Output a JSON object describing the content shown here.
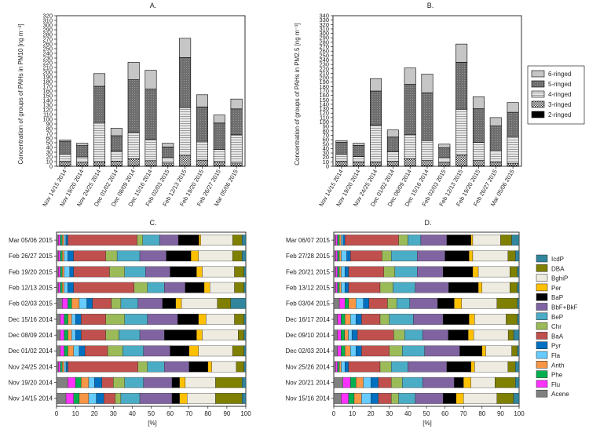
{
  "colors": {
    "ring": [
      "#000000",
      "#ffffff",
      "#d9d9d9",
      "#707070",
      "#c6c6c6"
    ],
    "pah": {
      "Acene": "#808080",
      "Flu": "#ff33ff",
      "Phe": "#00b050",
      "Anth": "#f79646",
      "Fla": "#66ccff",
      "Pyr": "#0070c0",
      "BaA": "#c0504d",
      "Chr": "#9bbb59",
      "BeP": "#4bacc6",
      "BbF+BkF": "#8064a2",
      "BaP": "#000000",
      "Per": "#ffc000",
      "BghiP": "#eeece1",
      "DBA": "#7f7f00",
      "IcdP": "#31859c"
    }
  },
  "chart_data": [
    {
      "type": "bar",
      "stacked": true,
      "panel_label": "A.",
      "ylabel": "Concentration of groups of PAHs in PM10 [ng m⁻³]",
      "ylim": [
        0,
        320
      ],
      "yticks": [
        0,
        10,
        20,
        30,
        40,
        50,
        60,
        70,
        80,
        90,
        100,
        110,
        120,
        130,
        140,
        150,
        160,
        170,
        180,
        190,
        200,
        210,
        220,
        230,
        240,
        250,
        260,
        270,
        280,
        290,
        300,
        310,
        320
      ],
      "categories": [
        "Nov 14/15 2014",
        "Nov 19/20 2014",
        "Nov 24/25 2014",
        "Dec 01/02 2014",
        "Dec 08/09 2014",
        "Dec 15/16 2014",
        "Feb 02/03 2015",
        "Feb 12/13 2015",
        "Feb 19/20 2015",
        "Feb 26/27 2015",
        "Mar 05/06 2015"
      ],
      "series": [
        {
          "name": "2-ringed",
          "values": [
            1,
            1,
            1,
            1,
            1,
            1,
            1,
            1,
            1,
            1,
            1
          ]
        },
        {
          "name": "3-ringed",
          "values": [
            9,
            7,
            8,
            10,
            15,
            11,
            6,
            22,
            12,
            8,
            6
          ]
        },
        {
          "name": "4-ringed",
          "values": [
            16,
            12,
            84,
            21,
            56,
            45,
            12,
            102,
            40,
            27,
            60
          ]
        },
        {
          "name": "5-ringed",
          "values": [
            27,
            24,
            77,
            33,
            112,
            107,
            22,
            106,
            73,
            56,
            55
          ]
        },
        {
          "name": "6-ringed",
          "values": [
            3,
            5,
            27,
            16,
            37,
            40,
            8,
            41,
            26,
            17,
            21
          ]
        }
      ]
    },
    {
      "type": "bar",
      "stacked": true,
      "panel_label": "B.",
      "ylabel": "Concentration of groups of PAHs in PM2.5 [ng m⁻³]",
      "ylim": [
        0,
        340
      ],
      "yticks": [
        0,
        10,
        20,
        30,
        40,
        50,
        60,
        70,
        80,
        90,
        100,
        110,
        120,
        130,
        140,
        150,
        160,
        170,
        180,
        190,
        200,
        210,
        220,
        230,
        240,
        250,
        260,
        270,
        280,
        290,
        300,
        310,
        320,
        330,
        340
      ],
      "categories": [
        "Nov 14/15 2014",
        "Nov 19/20 2014",
        "Nov 24/25 2014",
        "Dec 01/02 2014",
        "Dec 08/09 2014",
        "Dec 15/16 2014",
        "Feb 02/03 2015",
        "Feb 12/13 2015",
        "Feb 19/20 2015",
        "Feb 26/27 2015",
        "Mar 05/06 2015"
      ],
      "series": [
        {
          "name": "2-ringed",
          "values": [
            1,
            1,
            1,
            1,
            1,
            1,
            1,
            1,
            1,
            1,
            1
          ]
        },
        {
          "name": "3-ringed",
          "values": [
            10,
            8,
            8,
            10,
            16,
            12,
            7,
            24,
            12,
            8,
            6
          ]
        },
        {
          "name": "4-ringed",
          "values": [
            16,
            13,
            84,
            22,
            55,
            45,
            12,
            104,
            41,
            27,
            60
          ]
        },
        {
          "name": "5-ringed",
          "values": [
            27,
            25,
            77,
            33,
            113,
            108,
            22,
            106,
            76,
            55,
            55
          ]
        },
        {
          "name": "6-ringed",
          "values": [
            4,
            5,
            28,
            16,
            37,
            42,
            8,
            41,
            27,
            19,
            22
          ]
        }
      ],
      "legend": {
        "placement": "right",
        "order": [
          "6-ringed",
          "5-ringed",
          "4-ringed",
          "3-ringed",
          "2-ringed"
        ]
      }
    },
    {
      "type": "bar",
      "stacked": true,
      "orientation": "horizontal",
      "panel_label": "C.",
      "xlabel": "[%]",
      "xlim": [
        0,
        100
      ],
      "xticks": [
        0,
        10,
        20,
        30,
        40,
        50,
        60,
        70,
        80,
        90,
        100
      ],
      "components": [
        "Acene",
        "Flu",
        "Phe",
        "Anth",
        "Fla",
        "Pyr",
        "BaA",
        "Chr",
        "BeP",
        "BbF+BkF",
        "BaP",
        "Per",
        "BghiP",
        "DBA",
        "IcdP"
      ],
      "categories": [
        "Mar 05/06 2015",
        "Feb 26/27 2015",
        "Feb 19/20 2015",
        "Feb 12/13 2015",
        "Feb 02/03 2015",
        "Dec 15/16 2014",
        "Dec 08/09 2014",
        "Dec 01/02 2014",
        "Nov 24/25 2014",
        "Nov 19/20 2014",
        "Nov 14/15 2014"
      ],
      "rows": [
        [
          1,
          1,
          1,
          1,
          1,
          1,
          37,
          3,
          9,
          10,
          11,
          1,
          17,
          5,
          2
        ],
        [
          1,
          1,
          1,
          1,
          2,
          3,
          17,
          6,
          12,
          14,
          13,
          4,
          18,
          5,
          2
        ],
        [
          1,
          1,
          1,
          1,
          3,
          2,
          19,
          8,
          11,
          13,
          14,
          3,
          17,
          5,
          1
        ],
        [
          1,
          1,
          1,
          1,
          2,
          3,
          32,
          7,
          9,
          11,
          10,
          3,
          13,
          5,
          1
        ],
        [
          3,
          3,
          2,
          4,
          4,
          3,
          10,
          5,
          9,
          13,
          7,
          3,
          19,
          7,
          8
        ],
        [
          2,
          2,
          2,
          2,
          2,
          3,
          13,
          10,
          12,
          16,
          11,
          4,
          15,
          5,
          1
        ],
        [
          2,
          2,
          2,
          2,
          2,
          3,
          13,
          7,
          11,
          13,
          17,
          3,
          19,
          3,
          1
        ],
        [
          2,
          2,
          2,
          3,
          3,
          3,
          12,
          8,
          11,
          14,
          10,
          5,
          18,
          6,
          1
        ],
        [
          1,
          1,
          1,
          1,
          1,
          1,
          37,
          5,
          9,
          13,
          10,
          2,
          13,
          4,
          1
        ],
        [
          6,
          4,
          3,
          4,
          3,
          4,
          6,
          6,
          10,
          15,
          4,
          3,
          16,
          14,
          2
        ],
        [
          5,
          4,
          3,
          5,
          4,
          4,
          6,
          3,
          10,
          17,
          4,
          4,
          15,
          14,
          2
        ]
      ]
    },
    {
      "type": "bar",
      "stacked": true,
      "orientation": "horizontal",
      "panel_label": "D.",
      "xlabel": "[%]",
      "xlim": [
        0,
        100
      ],
      "xticks": [
        0,
        10,
        20,
        30,
        40,
        50,
        60,
        70,
        80,
        90,
        100
      ],
      "components": [
        "Acene",
        "Flu",
        "Phe",
        "Anth",
        "Fla",
        "Pyr",
        "BaA",
        "Chr",
        "BeP",
        "BbF+BkF",
        "BaP",
        "Per",
        "BghiP",
        "DBA",
        "IcdP"
      ],
      "categories": [
        "Mar 06/07 2015",
        "Feb 27/28 2015",
        "Feb 20/21 2015",
        "Feb 13/12 2015",
        "Feb 03/04 2015",
        "Dec 16/17 2014",
        "Dec 09/10 2014",
        "Dec 02/03 2014",
        "Nov 25/26 2014",
        "Nov 20/21 2014",
        "Nov 15/16 2014"
      ],
      "rows": [
        [
          1,
          1,
          1,
          1,
          1,
          1,
          29,
          5,
          7,
          14,
          13,
          1,
          15,
          6,
          4
        ],
        [
          1,
          1,
          1,
          1,
          3,
          2,
          17,
          5,
          14,
          15,
          13,
          2,
          19,
          4,
          2
        ],
        [
          1,
          1,
          1,
          1,
          2,
          2,
          19,
          6,
          12,
          14,
          16,
          3,
          17,
          4,
          1
        ],
        [
          1,
          1,
          1,
          1,
          2,
          2,
          17,
          7,
          12,
          18,
          16,
          2,
          15,
          4,
          1
        ],
        [
          3,
          3,
          2,
          4,
          4,
          3,
          10,
          5,
          7,
          15,
          9,
          4,
          19,
          11,
          1
        ],
        [
          2,
          2,
          2,
          3,
          3,
          3,
          10,
          5,
          13,
          16,
          14,
          3,
          17,
          6,
          1
        ],
        [
          2,
          2,
          2,
          2,
          2,
          3,
          20,
          6,
          10,
          14,
          11,
          3,
          19,
          3,
          3
        ],
        [
          2,
          2,
          2,
          3,
          3,
          3,
          15,
          7,
          12,
          19,
          12,
          2,
          14,
          3,
          1
        ],
        [
          1,
          1,
          1,
          1,
          2,
          2,
          17,
          6,
          9,
          21,
          13,
          2,
          18,
          4,
          2
        ],
        [
          5,
          4,
          3,
          4,
          4,
          4,
          7,
          6,
          11,
          17,
          5,
          4,
          13,
          11,
          2
        ],
        [
          4,
          4,
          3,
          4,
          5,
          4,
          7,
          4,
          9,
          15,
          7,
          4,
          18,
          9,
          3
        ]
      ],
      "legend": {
        "placement": "right",
        "order": [
          "IcdP",
          "DBA",
          "BghiP",
          "Per",
          "BaP",
          "BbF+BkF",
          "BeP",
          "Chr",
          "BaA",
          "Pyr",
          "Fla",
          "Anth",
          "Phe",
          "Flu",
          "Acene"
        ]
      }
    }
  ]
}
